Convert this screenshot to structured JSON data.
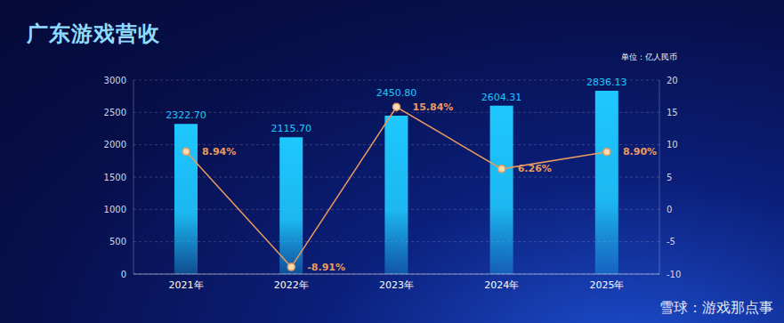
{
  "chart_data": {
    "type": "bar",
    "title": "广东游戏营收",
    "subtitle": "单位：亿人民币",
    "annotation": "雪球：游戏那点事",
    "categories": [
      "2021年",
      "2022年",
      "2023年",
      "2024年",
      "2025年"
    ],
    "series": [
      {
        "type": "bar",
        "color": "#1ec8ff",
        "values": [
          2322.7,
          2115.7,
          2450.8,
          2604.31,
          2836.13
        ],
        "value_labels": [
          "2322.70",
          "2115.70",
          "2450.80",
          "2604.31",
          "2836.13"
        ]
      },
      {
        "type": "line",
        "axis": "y2",
        "color": "#e89a5f",
        "marker": "circle",
        "values": [
          8.94,
          -8.91,
          15.84,
          6.26,
          8.9
        ],
        "value_labels": [
          "8.94%",
          "-8.91%",
          "15.84%",
          "6.26%",
          "8.90%"
        ]
      }
    ],
    "ylim": [
      0,
      3000
    ],
    "yticks": [
      0,
      500,
      1000,
      1500,
      2000,
      2500,
      3000
    ],
    "y2lim": [
      -10,
      20
    ],
    "y2ticks": [
      -10,
      -5,
      0,
      5,
      10,
      15,
      20
    ],
    "grid": true,
    "data_labels": true
  }
}
